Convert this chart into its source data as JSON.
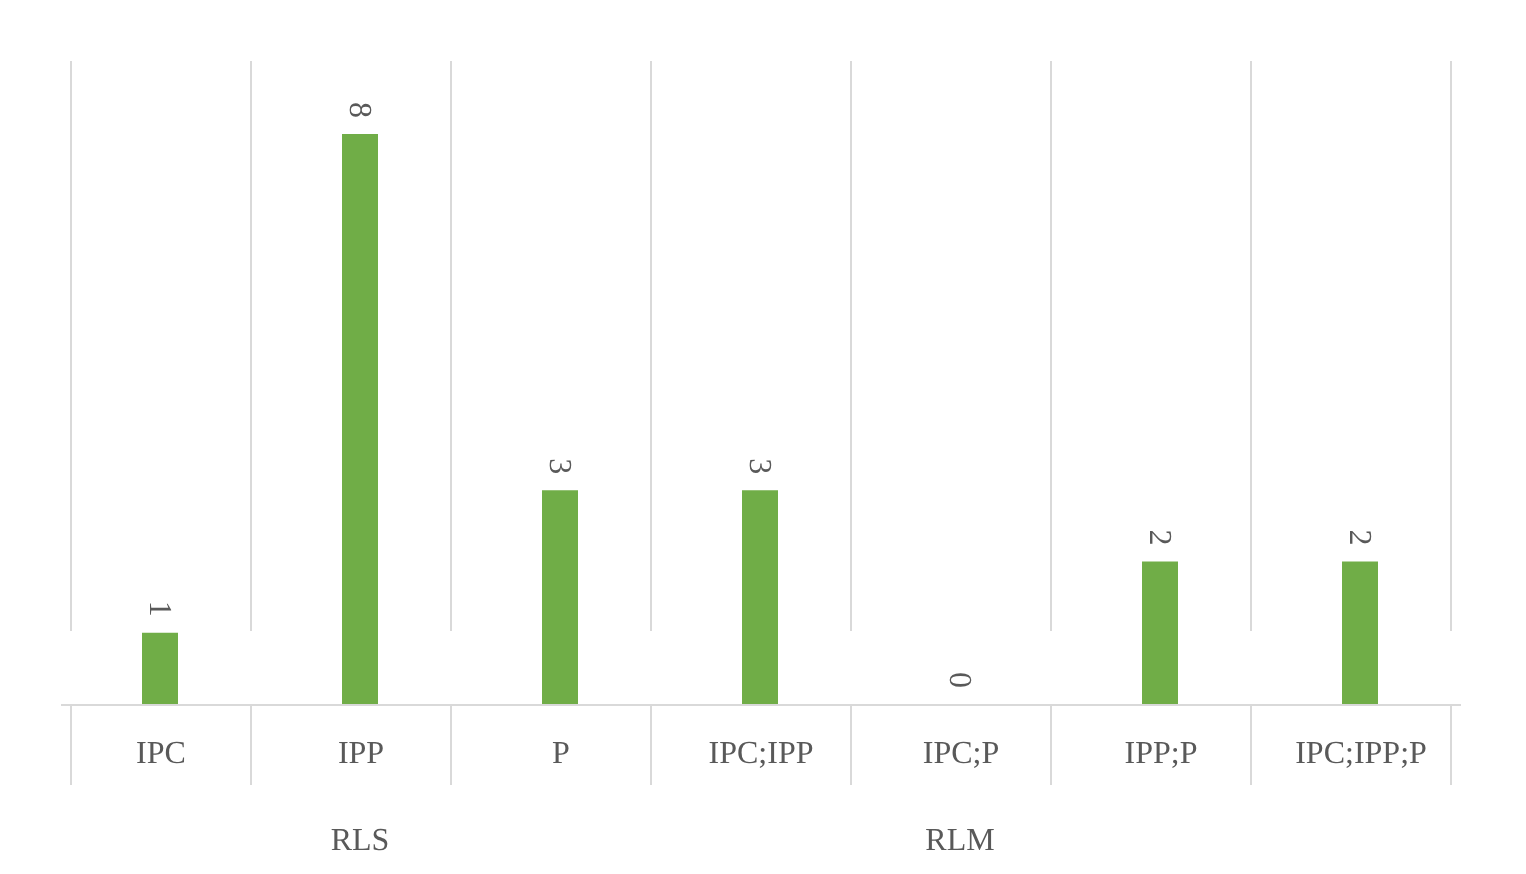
{
  "chart_data": {
    "type": "bar",
    "categories": [
      "IPC",
      "IPP",
      "P",
      "IPC;IPP",
      "IPC;P",
      "IPP;P",
      "IPC;IPP;P"
    ],
    "values": [
      1,
      8,
      3,
      3,
      0,
      2,
      2
    ],
    "color": "#70ad47",
    "data_labels": true,
    "grid": "x",
    "annotations": [
      "RLS",
      "RLM"
    ]
  }
}
